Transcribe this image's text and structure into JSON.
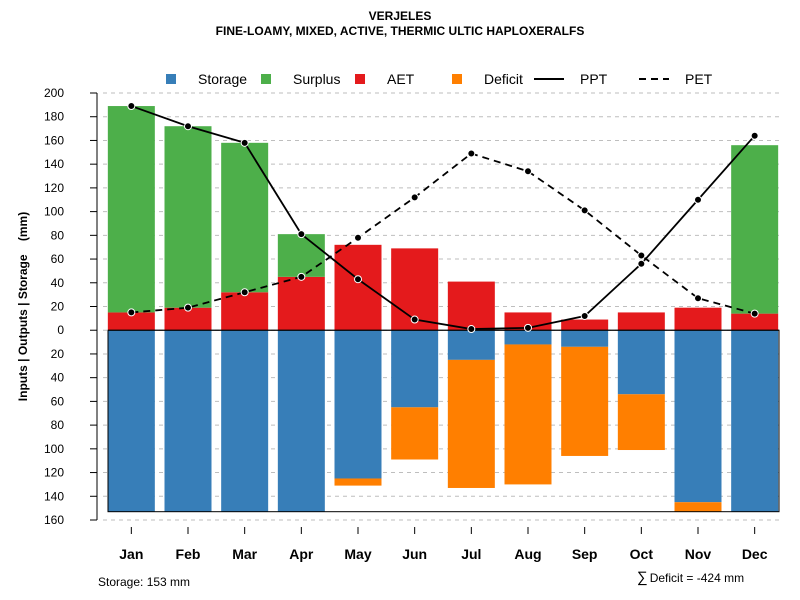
{
  "title": "VERJELES",
  "subtitle": "FINE-LOAMY, MIXED, ACTIVE, THERMIC ULTIC HAPLOXERALFS",
  "footer": {
    "storage": "Storage: 153 mm",
    "deficit_symbol": "∑",
    "deficit": "Deficit = -424 mm"
  },
  "colors": {
    "storage": "#377EB8",
    "surplus": "#4DAF4A",
    "aet": "#E41A1C",
    "deficit": "#FF7F00",
    "grid": "#BEBEBE"
  },
  "chart_data": {
    "type": "bar",
    "ylabel": "Inputs | Outputs | Storage    (mm)",
    "ylim": [
      -160,
      200
    ],
    "yticks": [
      200,
      180,
      160,
      140,
      120,
      100,
      80,
      60,
      40,
      20,
      0,
      -20,
      -40,
      -60,
      -80,
      -100,
      -120,
      -140,
      -160
    ],
    "ytick_labels": [
      "200",
      "180",
      "160",
      "140",
      "120",
      "100",
      "80",
      "60",
      "40",
      "20",
      "0",
      "20",
      "40",
      "60",
      "80",
      "100",
      "120",
      "140",
      "160"
    ],
    "grid": true,
    "legend_position": "top",
    "legend": [
      {
        "key": "storage",
        "label": "Storage",
        "kind": "square"
      },
      {
        "key": "surplus",
        "label": "Surplus",
        "kind": "square"
      },
      {
        "key": "aet",
        "label": "AET",
        "kind": "square"
      },
      {
        "key": "deficit",
        "label": "Deficit",
        "kind": "square"
      },
      {
        "key": "ppt",
        "label": "PPT",
        "kind": "solid"
      },
      {
        "key": "pet",
        "label": "PET",
        "kind": "dashed"
      }
    ],
    "categories": [
      "Jan",
      "Feb",
      "Mar",
      "Apr",
      "May",
      "Jun",
      "Jul",
      "Aug",
      "Sep",
      "Oct",
      "Nov",
      "Dec"
    ],
    "aet": [
      15,
      19,
      32,
      45,
      72,
      69,
      41,
      15,
      9,
      15,
      19,
      14
    ],
    "surplus": [
      174,
      153,
      126,
      36,
      0,
      0,
      0,
      0,
      0,
      0,
      0,
      142
    ],
    "storage": [
      153,
      153,
      153,
      153,
      125,
      65,
      25,
      12,
      14,
      54,
      145,
      153
    ],
    "deficit": [
      0,
      0,
      0,
      0,
      6,
      44,
      108,
      118,
      92,
      47,
      8,
      0
    ],
    "ppt": [
      189,
      172,
      158,
      81,
      43,
      9,
      1,
      2,
      12,
      56,
      110,
      164
    ],
    "pet": [
      15,
      19,
      32,
      45,
      78,
      112,
      149,
      134,
      101,
      63,
      27,
      14
    ],
    "storage_capacity": 153
  }
}
